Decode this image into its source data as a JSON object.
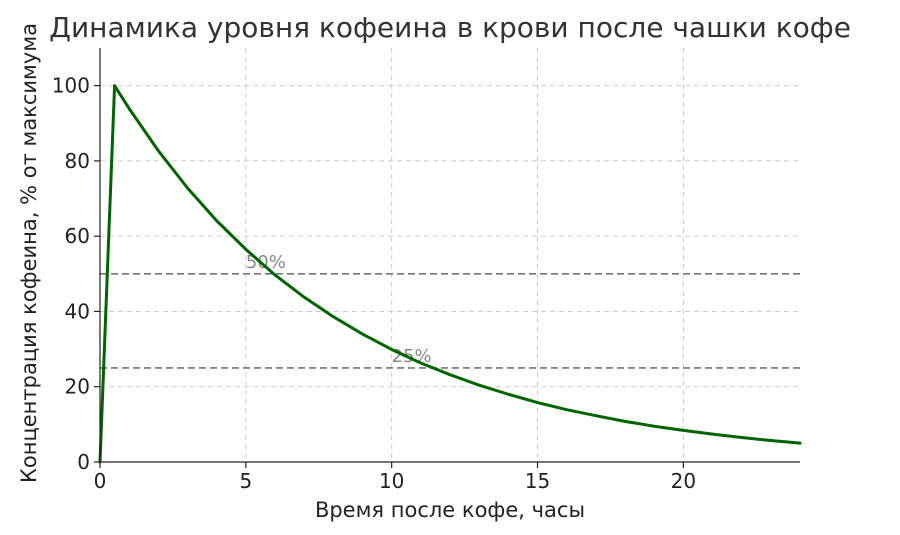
{
  "chart_data": {
    "type": "line",
    "title": "Динамика уровня кофеина в крови после чашки кофе",
    "xlabel": "Время после кофе, часы",
    "ylabel": "Концентрация кофеина, % от максимума",
    "xlim": [
      0,
      24
    ],
    "ylim": [
      0,
      110
    ],
    "x_ticks": [
      0,
      5,
      10,
      15,
      20
    ],
    "y_ticks": [
      0,
      20,
      40,
      60,
      80,
      100
    ],
    "grid": true,
    "series": [
      {
        "color": "#006400",
        "x": [
          0,
          0.5,
          1,
          2,
          3,
          4,
          5,
          6,
          7,
          8,
          9,
          10,
          11,
          12,
          13,
          14,
          15,
          16,
          17,
          18,
          19,
          20,
          21,
          22,
          23,
          24
        ],
        "y": [
          0,
          100,
          93.9,
          82.7,
          72.8,
          64.1,
          56.5,
          49.7,
          43.8,
          38.6,
          34.0,
          29.9,
          26.3,
          23.2,
          20.4,
          18.0,
          15.8,
          13.9,
          12.3,
          10.8,
          9.5,
          8.4,
          7.4,
          6.5,
          5.7,
          5.0
        ]
      }
    ],
    "reference_lines": [
      {
        "y": 50,
        "label": "50%",
        "label_x": 5,
        "color": "#777777"
      },
      {
        "y": 25,
        "label": "25%",
        "label_x": 10,
        "color": "#777777"
      }
    ]
  }
}
